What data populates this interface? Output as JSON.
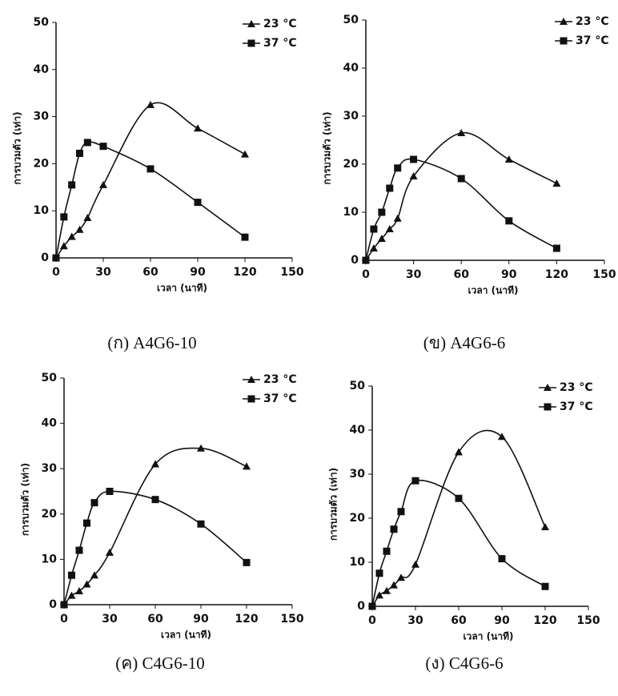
{
  "chart_data": [
    {
      "type": "line",
      "caption": "(ก) A4G6-10",
      "xlabel": "เวลา (นาที)",
      "ylabel": "การบวมตัว (เท่า)",
      "x": [
        0,
        5,
        10,
        15,
        20,
        30,
        60,
        90,
        120
      ],
      "series": [
        {
          "name": "23 °C",
          "marker": "triangle",
          "color": "#111111",
          "values": [
            0,
            2.5,
            4.5,
            6,
            8.5,
            15.5,
            32.5,
            27.5,
            22
          ]
        },
        {
          "name": "37 °C",
          "marker": "square",
          "color": "#111111",
          "values": [
            0,
            8.7,
            15.5,
            22.2,
            24.5,
            23.7,
            18.9,
            11.8,
            4.4
          ]
        }
      ],
      "xlim": [
        0,
        150
      ],
      "xticks": [
        0,
        30,
        60,
        90,
        120,
        150
      ],
      "ylim": [
        0,
        50
      ],
      "yticks": [
        0,
        10,
        20,
        30,
        40,
        50
      ],
      "legend": "upper right"
    },
    {
      "type": "line",
      "caption": "(ข) A4G6-6",
      "xlabel": "เวลา (นาที)",
      "ylabel": "การบวมตัว (เท่า)",
      "x": [
        0,
        5,
        10,
        15,
        20,
        30,
        60,
        90,
        120
      ],
      "series": [
        {
          "name": "23 °C",
          "marker": "triangle",
          "color": "#111111",
          "values": [
            0,
            2.5,
            4.5,
            6.5,
            8.7,
            17.5,
            26.5,
            21,
            16
          ]
        },
        {
          "name": "37 °C",
          "marker": "square",
          "color": "#111111",
          "values": [
            0,
            6.5,
            10,
            15,
            19.2,
            21,
            17,
            8.2,
            2.5
          ]
        }
      ],
      "xlim": [
        0,
        150
      ],
      "xticks": [
        0,
        30,
        60,
        90,
        120,
        150
      ],
      "ylim": [
        0,
        50
      ],
      "yticks": [
        0,
        10,
        20,
        30,
        40,
        50
      ],
      "legend": "upper right"
    },
    {
      "type": "line",
      "caption": "(ค) C4G6-10",
      "xlabel": "เวลา (นาที)",
      "ylabel": "การบวมตัว (เท่า)",
      "x": [
        0,
        5,
        10,
        15,
        20,
        30,
        60,
        90,
        120
      ],
      "series": [
        {
          "name": "23 °C",
          "marker": "triangle",
          "color": "#111111",
          "values": [
            0,
            2,
            3,
            4.5,
            6.5,
            11.5,
            31,
            34.5,
            30.5
          ]
        },
        {
          "name": "37 °C",
          "marker": "square",
          "color": "#111111",
          "values": [
            0,
            6.5,
            12,
            18,
            22.5,
            25,
            23.2,
            17.8,
            9.3
          ]
        }
      ],
      "xlim": [
        0,
        150
      ],
      "xticks": [
        0,
        30,
        60,
        90,
        120,
        150
      ],
      "ylim": [
        0,
        50
      ],
      "yticks": [
        0,
        10,
        20,
        30,
        40,
        50
      ],
      "legend": "upper right"
    },
    {
      "type": "line",
      "caption": "(ง) C4G6-6",
      "xlabel": "เวลา (นาที)",
      "ylabel": "การบวมตัว (เท่า)",
      "x": [
        0,
        5,
        10,
        15,
        20,
        30,
        60,
        90,
        120
      ],
      "series": [
        {
          "name": "23 °C",
          "marker": "triangle",
          "color": "#111111",
          "values": [
            0,
            2.5,
            3.5,
            4.8,
            6.5,
            9.5,
            35,
            38.5,
            18
          ]
        },
        {
          "name": "37 °C",
          "marker": "square",
          "color": "#111111",
          "values": [
            0,
            7.5,
            12.5,
            17.5,
            21.5,
            28.5,
            24.5,
            10.8,
            4.5
          ]
        }
      ],
      "xlim": [
        0,
        150
      ],
      "xticks": [
        0,
        30,
        60,
        90,
        120,
        150
      ],
      "ylim": [
        0,
        50
      ],
      "yticks": [
        0,
        10,
        20,
        30,
        40,
        50
      ],
      "legend": "upper right"
    }
  ]
}
